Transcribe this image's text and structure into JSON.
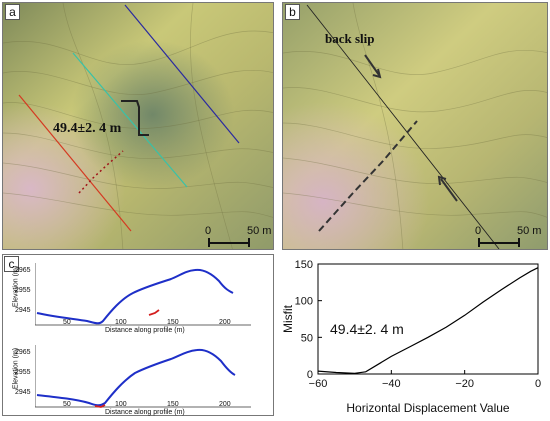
{
  "panel_a": {
    "letter": "a",
    "measurement": "49.4±2. 4 m",
    "scale": {
      "zero": "0",
      "length": "50 m"
    }
  },
  "panel_b": {
    "letter": "b",
    "label": "back slip",
    "scale": {
      "zero": "0",
      "length": "50 m"
    }
  },
  "panel_c": {
    "letter": "c",
    "profiles": [
      {
        "ylabel": "Elevation (m)",
        "xlabel": "Distance along profile (m)",
        "yticks": [
          "2965",
          "2955",
          "2945"
        ],
        "xticks": [
          "50",
          "100",
          "150",
          "200"
        ]
      },
      {
        "ylabel": "Elevation (m)",
        "xlabel": "Distance along profile (m)",
        "yticks": [
          "2965",
          "2955",
          "2945"
        ],
        "xticks": [
          "50",
          "100",
          "150",
          "200"
        ]
      }
    ]
  },
  "chart_data": {
    "type": "line",
    "title": "",
    "xlabel": "Horizontal Displacement Value",
    "ylabel": "Misfit",
    "annotation": "49.4±2. 4 m",
    "xlim": [
      -60,
      0
    ],
    "ylim": [
      0,
      150
    ],
    "xticks": [
      -60,
      -40,
      -20,
      0
    ],
    "yticks": [
      0,
      50,
      100,
      150
    ],
    "grid": false,
    "x": [
      -60,
      -55,
      -50,
      -47,
      -44,
      -40,
      -35,
      -30,
      -25,
      -20,
      -15,
      -10,
      -5,
      -2,
      0
    ],
    "y": [
      4,
      2,
      1,
      3,
      12,
      24,
      37,
      50,
      64,
      80,
      98,
      115,
      131,
      140,
      145
    ]
  }
}
